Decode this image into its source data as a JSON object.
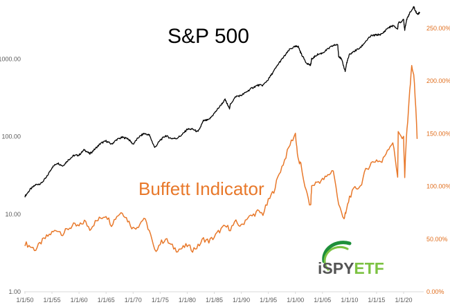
{
  "chart_data": {
    "type": "line",
    "titles": {
      "sp": "S&P 500",
      "buffett": "Buffett Indicator"
    },
    "logo": {
      "prefix": "iSPY",
      "suffix": "ETF",
      "colors": [
        "#1e8f3a",
        "#7cc242"
      ]
    },
    "colors": {
      "sp": "#000000",
      "buffett": "#e8782a",
      "left_axis": "#595959",
      "right_axis": "#e06d1c",
      "baseline": "#d9d9d9"
    },
    "left_axis": {
      "scale": "log",
      "ticks": [
        "1.00",
        "10.00",
        "100.00",
        "1000.00"
      ],
      "tick_values": [
        1,
        10,
        100,
        1000
      ],
      "range": [
        1,
        4000
      ]
    },
    "right_axis": {
      "scale": "linear",
      "ticks": [
        "0.00%",
        "50.00%",
        "100.00%",
        "150.00%",
        "200.00%",
        "250.00%"
      ],
      "tick_values": [
        0,
        50,
        100,
        150,
        200,
        250
      ],
      "range": [
        0,
        265
      ]
    },
    "x_axis": {
      "ticks": [
        "1/1/50",
        "1/1/55",
        "1/1/60",
        "1/1/65",
        "1/1/70",
        "1/1/75",
        "1/1/80",
        "1/1/85",
        "1/1/90",
        "1/1/95",
        "1/1/00",
        "1/1/05",
        "1/1/10",
        "1/1/15",
        "1/1/20"
      ],
      "tick_years": [
        1950,
        1955,
        1960,
        1965,
        1970,
        1975,
        1980,
        1985,
        1990,
        1995,
        2000,
        2005,
        2010,
        2015,
        2020
      ],
      "range": [
        1950,
        2023.2
      ]
    },
    "series": [
      {
        "name": "S&P 500",
        "axis": "left",
        "x": [
          1950,
          1951,
          1952,
          1953,
          1954,
          1955,
          1956,
          1957,
          1958,
          1959,
          1960,
          1961,
          1962,
          1963,
          1964,
          1965,
          1966,
          1967,
          1968,
          1969,
          1970,
          1971,
          1972,
          1973,
          1974,
          1975,
          1976,
          1977,
          1978,
          1979,
          1980,
          1981,
          1982,
          1983,
          1984,
          1985,
          1986,
          1987,
          1987.8,
          1988,
          1989,
          1990,
          1991,
          1992,
          1993,
          1994,
          1995,
          1996,
          1997,
          1998,
          1999,
          2000,
          2000.5,
          2001,
          2002,
          2002.8,
          2003,
          2004,
          2005,
          2006,
          2007,
          2007.8,
          2008,
          2008.5,
          2009.2,
          2009.5,
          2010,
          2011,
          2012,
          2013,
          2014,
          2015,
          2016,
          2017,
          2018,
          2018.9,
          2019,
          2020,
          2020.2,
          2020.5,
          2021,
          2021.9,
          2022,
          2022.5,
          2023
        ],
        "values": [
          17,
          21,
          24,
          25,
          30,
          40,
          46,
          42,
          50,
          57,
          58,
          68,
          60,
          70,
          82,
          88,
          80,
          92,
          98,
          95,
          80,
          98,
          110,
          105,
          72,
          90,
          103,
          95,
          95,
          105,
          125,
          125,
          115,
          160,
          165,
          200,
          245,
          300,
          230,
          265,
          330,
          340,
          380,
          425,
          460,
          460,
          550,
          700,
          900,
          1100,
          1350,
          1450,
          1470,
          1200,
          900,
          830,
          1000,
          1140,
          1200,
          1350,
          1500,
          1550,
          1100,
          1000,
          700,
          900,
          1150,
          1280,
          1400,
          1700,
          2000,
          2050,
          2100,
          2500,
          2700,
          2450,
          2900,
          3200,
          2400,
          3100,
          3800,
          4700,
          4500,
          3800,
          4000
        ]
      },
      {
        "name": "Buffett Indicator",
        "axis": "right",
        "x": [
          1950,
          1951,
          1952,
          1953,
          1954,
          1955,
          1956,
          1957,
          1958,
          1959,
          1960,
          1961,
          1962,
          1963,
          1964,
          1965,
          1966,
          1967,
          1968,
          1969,
          1970,
          1971,
          1972,
          1973,
          1974,
          1975,
          1976,
          1977,
          1978,
          1979,
          1980,
          1981,
          1982,
          1983,
          1984,
          1985,
          1986,
          1987,
          1988,
          1989,
          1990,
          1991,
          1992,
          1993,
          1994,
          1995,
          1996,
          1997,
          1998,
          1999,
          2000,
          2000.5,
          2001,
          2002,
          2002.8,
          2003,
          2004,
          2005,
          2006,
          2007,
          2008,
          2009,
          2009.3,
          2010,
          2011,
          2012,
          2013,
          2014,
          2015,
          2016,
          2017,
          2018,
          2018.9,
          2019,
          2020,
          2020.2,
          2020.5,
          2021,
          2021.5,
          2022,
          2022.5
        ],
        "values": [
          46,
          43,
          40,
          47,
          52,
          56,
          59,
          55,
          60,
          63,
          62,
          67,
          60,
          66,
          70,
          73,
          64,
          72,
          76,
          68,
          60,
          63,
          70,
          58,
          38,
          46,
          50,
          44,
          40,
          41,
          44,
          40,
          43,
          50,
          48,
          52,
          58,
          62,
          60,
          66,
          62,
          70,
          72,
          76,
          74,
          86,
          96,
          112,
          125,
          140,
          150,
          125,
          120,
          95,
          80,
          100,
          104,
          106,
          110,
          116,
          82,
          70,
          74,
          90,
          98,
          100,
          115,
          122,
          125,
          123,
          135,
          142,
          110,
          150,
          145,
          110,
          145,
          180,
          215,
          200,
          145
        ]
      }
    ]
  }
}
